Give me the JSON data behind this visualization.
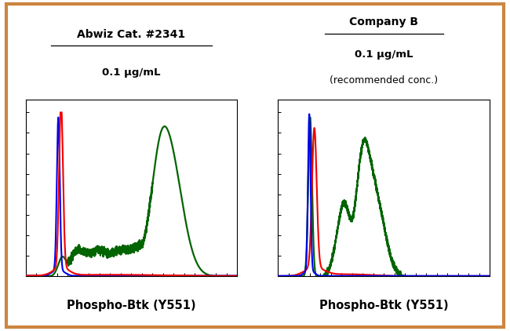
{
  "fig_bg": "#FFFFFF",
  "outer_border_color": "#CD853F",
  "panel1_title_line1": "Abwiz Cat. #2341",
  "panel1_title_line2": "0.1 μg/mL",
  "panel2_title_line1": "Company B",
  "panel2_title_line2": "0.1 μg/mL",
  "panel2_title_line3": "(recommended conc.)",
  "xlabel": "Phospho-Btk (Y551)",
  "blue_color": "#0000EE",
  "red_color": "#EE0000",
  "green_color": "#006400",
  "axis_bg": "#FFFFFF",
  "spine_color": "#000000"
}
